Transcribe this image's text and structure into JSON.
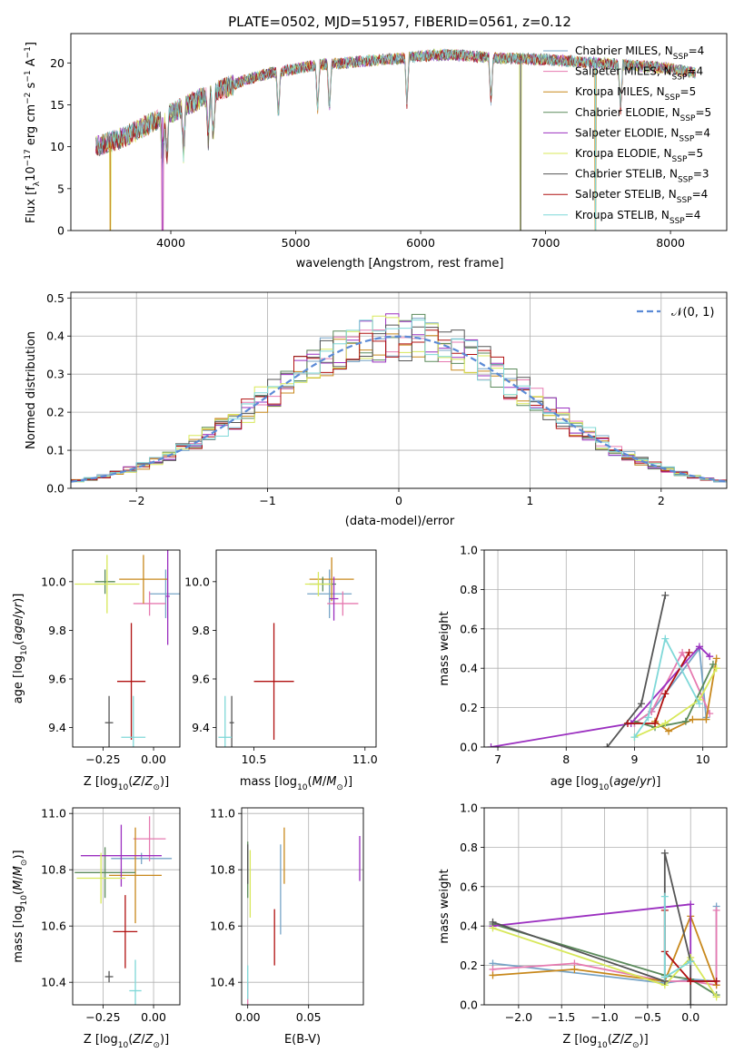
{
  "figure_title": "PLATE=0502, MJD=51957, FIBERID=0561, z=0.12",
  "model_colors": [
    "#77a4c7",
    "#e67ab0",
    "#c8881c",
    "#5b8a5b",
    "#9b30c0",
    "#d8e85a",
    "#555555",
    "#b01010",
    "#7fd8d8"
  ],
  "chart_data": [
    {
      "id": "spectrum",
      "type": "line",
      "title": "PLATE=0502, MJD=51957, FIBERID=0561, z=0.12",
      "xlabel": "wavelength [Angstrom, rest frame]",
      "ylabel": "Flux [f_λ 10^-17 erg cm^-2 s^-1 A^-1]",
      "xlim": [
        3200,
        8450
      ],
      "ylim": [
        0,
        23.5
      ],
      "xticks": [
        4000,
        5000,
        6000,
        7000,
        8000
      ],
      "yticks": [
        0,
        5,
        10,
        15,
        20
      ],
      "grid": false,
      "legend_position": "top-right",
      "continuum": {
        "x": [
          3400,
          3600,
          3800,
          4000,
          4200,
          4400,
          4600,
          4800,
          5000,
          5200,
          5400,
          5600,
          5800,
          6000,
          6200,
          6400,
          6600,
          6800,
          7000,
          7200,
          7400,
          7600,
          7800,
          8000,
          8200
        ],
        "y": [
          10.0,
          11.0,
          12.5,
          14.0,
          15.5,
          16.8,
          18.0,
          18.8,
          19.3,
          19.8,
          20.0,
          20.3,
          20.5,
          20.8,
          21.0,
          20.8,
          20.6,
          20.5,
          20.4,
          20.2,
          20.0,
          19.8,
          19.6,
          19.3,
          18.8
        ]
      },
      "dips": [
        {
          "x": 3515,
          "y": 0
        },
        {
          "x": 3934,
          "y": 0
        },
        {
          "x": 6800,
          "y": 0
        },
        {
          "x": 7400,
          "y": 0
        }
      ],
      "series": [
        {
          "name": "Chabrier MILES, N",
          "sub": "SSP",
          "suffix": "=4"
        },
        {
          "name": "Salpeter MILES, N",
          "sub": "SSP",
          "suffix": "=4"
        },
        {
          "name": "Kroupa MILES, N",
          "sub": "SSP",
          "suffix": "=5"
        },
        {
          "name": "Chabrier ELODIE, N",
          "sub": "SSP",
          "suffix": "=5"
        },
        {
          "name": "Salpeter ELODIE, N",
          "sub": "SSP",
          "suffix": "=4"
        },
        {
          "name": "Kroupa ELODIE, N",
          "sub": "SSP",
          "suffix": "=5"
        },
        {
          "name": "Chabrier STELIB, N",
          "sub": "SSP",
          "suffix": "=3"
        },
        {
          "name": "Salpeter STELIB, N",
          "sub": "SSP",
          "suffix": "=4"
        },
        {
          "name": "Kroupa STELIB, N",
          "sub": "SSP",
          "suffix": "=4"
        }
      ]
    },
    {
      "id": "residuals",
      "type": "histogram",
      "xlabel": "(data-model)/error",
      "ylabel": "Normed distribution",
      "xlim": [
        -2.5,
        2.5
      ],
      "ylim": [
        0,
        0.515
      ],
      "xticks": [
        -2,
        -1,
        0,
        1,
        2
      ],
      "yticks": [
        0.0,
        0.1,
        0.2,
        0.3,
        0.4,
        0.5
      ],
      "grid": true,
      "legend_position": "top-right",
      "bin_width": 0.1,
      "gaussian_label": "N(0,1)",
      "gaussian_mean": 0,
      "gaussian_sigma": 1
    },
    {
      "id": "age_vs_Z",
      "type": "errorbar",
      "xlabel": "Z [log10(Z/Z☉)]",
      "ylabel": "age [log10(age/yr)]",
      "xlim": [
        -0.4,
        0.13
      ],
      "ylim": [
        9.32,
        10.13
      ],
      "xticks": [
        -0.25,
        0.0
      ],
      "yticks": [
        9.4,
        9.6,
        9.8,
        10.0
      ],
      "grid": false,
      "points": [
        {
          "x": 0.06,
          "y": 9.95,
          "xerr": 0.08,
          "yerr": 0.1,
          "c": 0
        },
        {
          "x": -0.02,
          "y": 9.91,
          "xerr": 0.08,
          "yerr": 0.05,
          "c": 1
        },
        {
          "x": -0.05,
          "y": 10.01,
          "xerr": 0.12,
          "yerr": 0.1,
          "c": 2
        },
        {
          "x": -0.24,
          "y": 10.0,
          "xerr": 0.05,
          "yerr": 0.05,
          "c": 3
        },
        {
          "x": 0.07,
          "y": 9.94,
          "xerr": 0.01,
          "yerr": 0.2,
          "c": 4
        },
        {
          "x": -0.23,
          "y": 9.99,
          "xerr": 0.16,
          "yerr": 0.12,
          "c": 5
        },
        {
          "x": -0.22,
          "y": 9.42,
          "xerr": 0.02,
          "yerr": 0.11,
          "c": 6
        },
        {
          "x": -0.11,
          "y": 9.59,
          "xerr": 0.07,
          "yerr": 0.24,
          "c": 7
        },
        {
          "x": -0.1,
          "y": 9.36,
          "xerr": 0.06,
          "yerr": 0.17,
          "c": 8
        }
      ]
    },
    {
      "id": "age_vs_mass",
      "type": "errorbar",
      "xlabel": "mass [log10(M/M☉)]",
      "ylabel": "",
      "xlim": [
        10.33,
        11.05
      ],
      "ylim": [
        9.32,
        10.13
      ],
      "xticks": [
        10.5,
        11.0
      ],
      "yticks": [
        9.4,
        9.6,
        9.8,
        10.0
      ],
      "grid": false,
      "points": [
        {
          "x": 10.84,
          "y": 9.95,
          "xerr": 0.1,
          "yerr": 0.1,
          "c": 0
        },
        {
          "x": 10.9,
          "y": 9.91,
          "xerr": 0.07,
          "yerr": 0.05,
          "c": 1
        },
        {
          "x": 10.85,
          "y": 10.01,
          "xerr": 0.1,
          "yerr": 0.09,
          "c": 2
        },
        {
          "x": 10.81,
          "y": 9.99,
          "xerr": 0.06,
          "yerr": 0.03,
          "c": 3
        },
        {
          "x": 10.86,
          "y": 9.93,
          "xerr": 0.02,
          "yerr": 0.09,
          "c": 4
        },
        {
          "x": 10.79,
          "y": 9.99,
          "xerr": 0.06,
          "yerr": 0.05,
          "c": 5
        },
        {
          "x": 10.4,
          "y": 9.42,
          "xerr": 0.01,
          "yerr": 0.11,
          "c": 6
        },
        {
          "x": 10.59,
          "y": 9.59,
          "xerr": 0.09,
          "yerr": 0.24,
          "c": 7
        },
        {
          "x": 10.37,
          "y": 9.36,
          "xerr": 0.03,
          "yerr": 0.17,
          "c": 8
        }
      ]
    },
    {
      "id": "weight_vs_age",
      "type": "line",
      "xlabel": "age [log10(age/yr)]",
      "ylabel": "mass weight",
      "xlim": [
        6.8,
        10.35
      ],
      "ylim": [
        0,
        1
      ],
      "xticks": [
        7,
        8,
        9,
        10
      ],
      "yticks": [
        0.0,
        0.2,
        0.4,
        0.6,
        0.8,
        1.0
      ],
      "grid": true,
      "series": [
        {
          "c": 0,
          "x": [
            9.0,
            9.25,
            9.95,
            10.05
          ],
          "y": [
            0.12,
            0.18,
            0.5,
            0.15
          ]
        },
        {
          "c": 1,
          "x": [
            9.0,
            9.25,
            9.7,
            10.1
          ],
          "y": [
            0.12,
            0.18,
            0.48,
            0.17
          ]
        },
        {
          "c": 2,
          "x": [
            9.3,
            9.5,
            9.85,
            10.05,
            10.2
          ],
          "y": [
            0.13,
            0.08,
            0.14,
            0.14,
            0.45
          ]
        },
        {
          "c": 3,
          "x": [
            9.0,
            9.3,
            9.75,
            10.15
          ],
          "y": [
            0.13,
            0.1,
            0.13,
            0.42
          ]
        },
        {
          "c": 4,
          "x": [
            6.9,
            8.95,
            9.95,
            10.1
          ],
          "y": [
            0.0,
            0.12,
            0.51,
            0.46
          ]
        },
        {
          "c": 5,
          "x": [
            9.0,
            9.45,
            9.95,
            10.2
          ],
          "y": [
            0.05,
            0.12,
            0.24,
            0.4
          ]
        },
        {
          "c": 6,
          "x": [
            8.6,
            9.1,
            9.45
          ],
          "y": [
            0.0,
            0.22,
            0.77
          ]
        },
        {
          "c": 7,
          "x": [
            8.9,
            9.3,
            9.45,
            9.8
          ],
          "y": [
            0.12,
            0.12,
            0.27,
            0.48
          ]
        },
        {
          "c": 8,
          "x": [
            9.0,
            9.2,
            9.45,
            9.95
          ],
          "y": [
            0.05,
            0.15,
            0.55,
            0.22
          ]
        }
      ]
    },
    {
      "id": "mass_vs_Z",
      "type": "errorbar",
      "xlabel": "Z [log10(Z/Z☉)]",
      "ylabel": "mass [log10(M/M☉)]",
      "xlim": [
        -0.4,
        0.13
      ],
      "ylim": [
        10.32,
        11.02
      ],
      "xticks": [
        -0.25,
        0.0
      ],
      "yticks": [
        10.4,
        10.6,
        10.8,
        11.0
      ],
      "grid": true,
      "points": [
        {
          "x": -0.06,
          "y": 10.84,
          "xerr": 0.15,
          "yerr": 0.02,
          "c": 0
        },
        {
          "x": -0.02,
          "y": 10.91,
          "xerr": 0.08,
          "yerr": 0.08,
          "c": 1
        },
        {
          "x": -0.09,
          "y": 10.78,
          "xerr": 0.13,
          "yerr": 0.17,
          "c": 2
        },
        {
          "x": -0.24,
          "y": 10.79,
          "xerr": 0.15,
          "yerr": 0.09,
          "c": 3
        },
        {
          "x": -0.16,
          "y": 10.85,
          "xerr": 0.2,
          "yerr": 0.11,
          "c": 4
        },
        {
          "x": -0.26,
          "y": 10.77,
          "xerr": 0.12,
          "yerr": 0.09,
          "c": 5
        },
        {
          "x": -0.22,
          "y": 10.42,
          "xerr": 0.02,
          "yerr": 0.02,
          "c": 6
        },
        {
          "x": -0.14,
          "y": 10.58,
          "xerr": 0.06,
          "yerr": 0.13,
          "c": 7
        },
        {
          "x": -0.09,
          "y": 10.37,
          "xerr": 0.03,
          "yerr": 0.11,
          "c": 8
        }
      ]
    },
    {
      "id": "mass_vs_ebv",
      "type": "errorbar",
      "xlabel": "E(B-V)",
      "ylabel": "",
      "xlim": [
        -0.005,
        0.095
      ],
      "ylim": [
        10.32,
        11.02
      ],
      "xticks": [
        0.0,
        0.05
      ],
      "yticks": [
        10.4,
        10.6,
        10.8,
        11.0
      ],
      "grid": true,
      "points": [
        {
          "x": 0.027,
          "y": 10.73,
          "xerr": 0.0,
          "yerr": 0.16,
          "c": 0
        },
        {
          "x": 0.0,
          "y": 10.35,
          "xerr": 0.0,
          "yerr": 0.05,
          "c": 1
        },
        {
          "x": 0.03,
          "y": 10.85,
          "xerr": 0.0,
          "yerr": 0.1,
          "c": 2
        },
        {
          "x": 0.0,
          "y": 10.8,
          "xerr": 0.0,
          "yerr": 0.1,
          "c": 3
        },
        {
          "x": 0.092,
          "y": 10.84,
          "xerr": 0.0,
          "yerr": 0.08,
          "c": 4
        },
        {
          "x": 0.002,
          "y": 10.75,
          "xerr": 0.0,
          "yerr": 0.12,
          "c": 5
        },
        {
          "x": 0.0,
          "y": 10.82,
          "xerr": 0.0,
          "yerr": 0.07,
          "c": 6
        },
        {
          "x": 0.022,
          "y": 10.56,
          "xerr": 0.0,
          "yerr": 0.1,
          "c": 7
        },
        {
          "x": 0.0,
          "y": 10.4,
          "xerr": 0.0,
          "yerr": 0.06,
          "c": 8
        }
      ]
    },
    {
      "id": "weight_vs_Z",
      "type": "line",
      "xlabel": "Z [log10(Z/Z☉)]",
      "ylabel": "mass weight",
      "xlim": [
        -2.4,
        0.42
      ],
      "ylim": [
        0,
        1
      ],
      "xticks": [
        -2.0,
        -1.5,
        -1.0,
        -0.5,
        0.0
      ],
      "yticks": [
        0.0,
        0.2,
        0.4,
        0.6,
        0.8,
        1.0
      ],
      "grid": true,
      "series": [
        {
          "c": 0,
          "x": [
            -2.3,
            -0.3,
            0.0,
            0.3,
            0.3
          ],
          "y": [
            0.21,
            0.11,
            0.13,
            0.12,
            0.5
          ]
        },
        {
          "c": 1,
          "x": [
            -2.3,
            -1.35,
            -0.3,
            0.0,
            0.3,
            0.3
          ],
          "y": [
            0.18,
            0.21,
            0.12,
            0.12,
            0.1,
            0.48
          ]
        },
        {
          "c": 2,
          "x": [
            -2.3,
            -1.35,
            -0.3,
            0.0,
            0.3
          ],
          "y": [
            0.15,
            0.18,
            0.12,
            0.45,
            0.1
          ]
        },
        {
          "c": 3,
          "x": [
            -2.3,
            -0.3,
            0.0,
            0.3
          ],
          "y": [
            0.41,
            0.15,
            0.13,
            0.05
          ]
        },
        {
          "c": 4,
          "x": [
            -2.3,
            0.0,
            0.0,
            0.3
          ],
          "y": [
            0.4,
            0.51,
            0.12,
            0.12
          ]
        },
        {
          "c": 5,
          "x": [
            -2.3,
            -0.3,
            0.0,
            0.3
          ],
          "y": [
            0.39,
            0.1,
            0.24,
            0.04
          ]
        },
        {
          "c": 6,
          "x": [
            -2.3,
            -0.3,
            -0.3,
            0.0,
            0.0
          ],
          "y": [
            0.42,
            0.12,
            0.77,
            0.22,
            0.0
          ]
        },
        {
          "c": 7,
          "x": [
            -0.3,
            -0.3,
            0.0,
            0.3
          ],
          "y": [
            0.48,
            0.27,
            0.12,
            0.12
          ]
        },
        {
          "c": 8,
          "x": [
            -0.3,
            -0.3,
            0.0
          ],
          "y": [
            0.55,
            0.14,
            0.22
          ]
        }
      ]
    }
  ]
}
